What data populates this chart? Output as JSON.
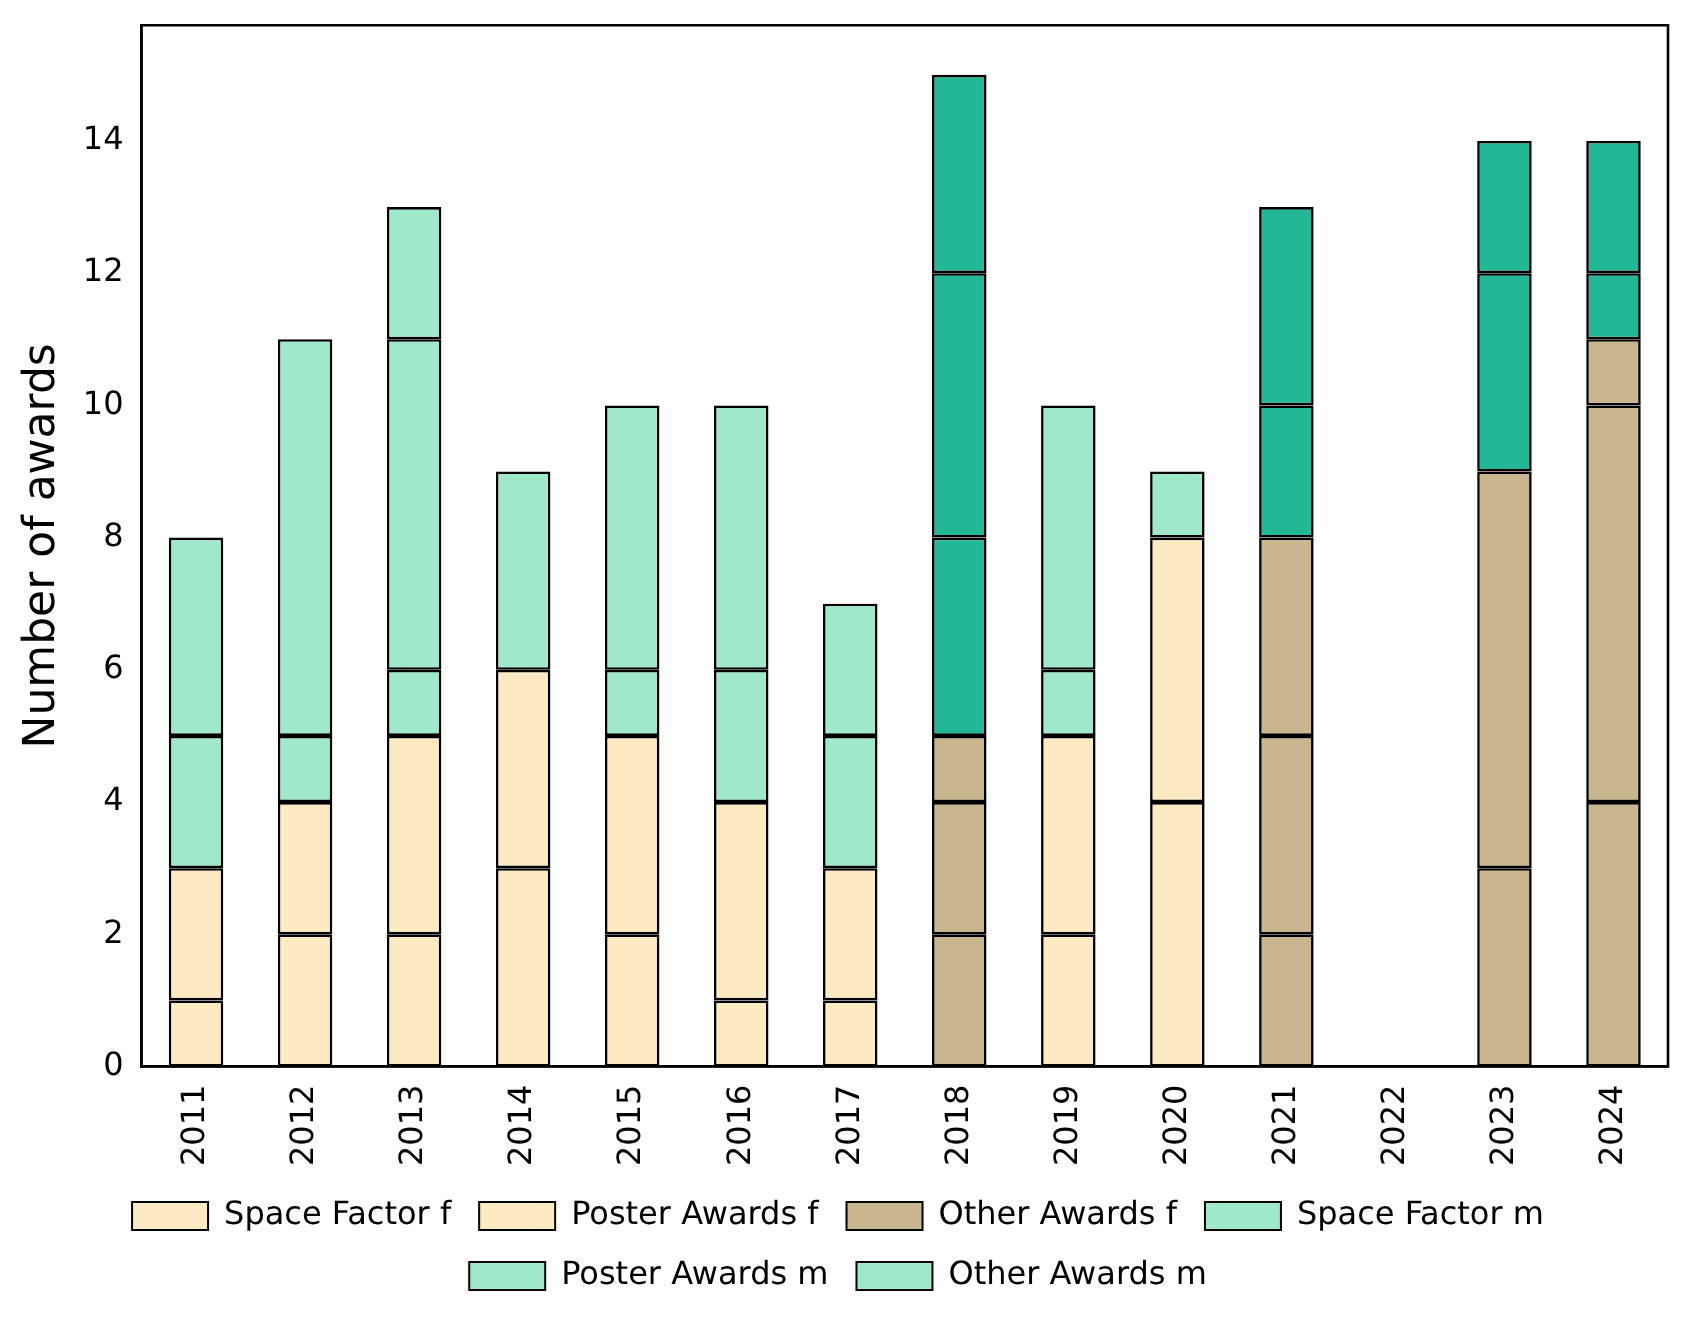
{
  "chart_data": {
    "type": "bar",
    "stacked": true,
    "ylabel": "Number of awards",
    "categories": [
      "2011",
      "2012",
      "2013",
      "2014",
      "2015",
      "2016",
      "2017",
      "2018",
      "2019",
      "2020",
      "2021",
      "2022",
      "2023",
      "2024"
    ],
    "series": [
      {
        "name": "Space Factor f",
        "color": "#fde9c2",
        "colors": [
          "#fde9c2",
          "#fde9c2",
          "#fde9c2",
          "#fde9c2",
          "#fde9c2",
          "#fde9c2",
          "#fde9c2",
          "#c9b68e",
          "#fde9c2",
          "#fde9c2",
          "#c9b68e",
          "#c9b68e",
          "#c9b68e",
          "#c9b68e"
        ],
        "values": [
          1,
          2,
          2,
          3,
          2,
          1,
          1,
          2,
          2,
          4,
          2,
          0,
          3,
          4
        ]
      },
      {
        "name": "Poster Awards f",
        "color": "#fde9c2",
        "colors": [
          "#fde9c2",
          "#fde9c2",
          "#fde9c2",
          "#fde9c2",
          "#fde9c2",
          "#fde9c2",
          "#fde9c2",
          "#c9b68e",
          "#fde9c2",
          "#fde9c2",
          "#c9b68e",
          "#c9b68e",
          "#c9b68e",
          "#c9b68e"
        ],
        "values": [
          2,
          2,
          3,
          3,
          3,
          3,
          2,
          2,
          3,
          4,
          3,
          0,
          6,
          6
        ]
      },
      {
        "name": "Other Awards f",
        "color": "#c9b68e",
        "colors": [
          "#fde9c2",
          "#fde9c2",
          "#fde9c2",
          "#fde9c2",
          "#fde9c2",
          "#fde9c2",
          "#fde9c2",
          "#c9b68e",
          "#fde9c2",
          "#fde9c2",
          "#c9b68e",
          "#c9b68e",
          "#c9b68e",
          "#c9b68e"
        ],
        "values": [
          0,
          0,
          0,
          0,
          0,
          0,
          0,
          1,
          0,
          0,
          3,
          0,
          0,
          1
        ]
      },
      {
        "name": "Space Factor m",
        "color": "#9fe8c9",
        "colors": [
          "#9fe8c9",
          "#9fe8c9",
          "#9fe8c9",
          "#9fe8c9",
          "#9fe8c9",
          "#9fe8c9",
          "#9fe8c9",
          "#22b796",
          "#9fe8c9",
          "#9fe8c9",
          "#22b796",
          "#22b796",
          "#22b796",
          "#22b796"
        ],
        "values": [
          2,
          1,
          1,
          0,
          1,
          2,
          2,
          3,
          1,
          0,
          2,
          0,
          3,
          1
        ]
      },
      {
        "name": "Poster Awards m",
        "color": "#9fe8c9",
        "colors": [
          "#9fe8c9",
          "#9fe8c9",
          "#9fe8c9",
          "#9fe8c9",
          "#9fe8c9",
          "#9fe8c9",
          "#9fe8c9",
          "#22b796",
          "#9fe8c9",
          "#9fe8c9",
          "#22b796",
          "#22b796",
          "#22b796",
          "#22b796"
        ],
        "values": [
          3,
          6,
          5,
          3,
          4,
          4,
          2,
          4,
          4,
          1,
          3,
          0,
          2,
          0
        ]
      },
      {
        "name": "Other Awards m",
        "color": "#9fe8c9",
        "colors": [
          "#9fe8c9",
          "#9fe8c9",
          "#9fe8c9",
          "#9fe8c9",
          "#9fe8c9",
          "#9fe8c9",
          "#9fe8c9",
          "#22b796",
          "#9fe8c9",
          "#9fe8c9",
          "#22b796",
          "#22b796",
          "#22b796",
          "#22b796"
        ],
        "values": [
          0,
          0,
          2,
          0,
          0,
          0,
          0,
          3,
          0,
          0,
          0,
          0,
          0,
          2
        ]
      }
    ],
    "ylim": [
      0,
      15.75
    ],
    "yticks": [
      0,
      2,
      4,
      6,
      8,
      10,
      12,
      14
    ],
    "grid": false,
    "legend": "bottom"
  }
}
